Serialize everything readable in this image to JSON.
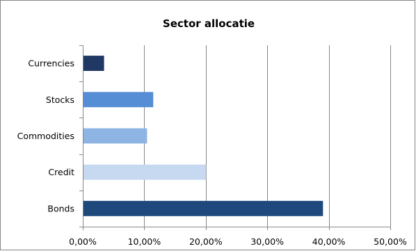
{
  "chart_data": {
    "type": "bar",
    "orientation": "horizontal",
    "title": "Sector allocatie",
    "xlabel": "",
    "ylabel": "",
    "categories": [
      "Currencies",
      "Stocks",
      "Commodities",
      "Credit",
      "Bonds"
    ],
    "values": [
      0.034,
      0.114,
      0.104,
      0.2,
      0.39
    ],
    "bar_colors": [
      "#1f3864",
      "#558ed5",
      "#8eb4e3",
      "#c6d9f1",
      "#1f497d"
    ],
    "xlim": [
      0,
      0.5
    ],
    "x_ticks": [
      0,
      0.1,
      0.2,
      0.3,
      0.4,
      0.5
    ],
    "x_tick_labels": [
      "0,00%",
      "10,00%",
      "20,00%",
      "30,00%",
      "40,00%",
      "50,00%"
    ],
    "grid": "vertical",
    "legend": "none"
  }
}
